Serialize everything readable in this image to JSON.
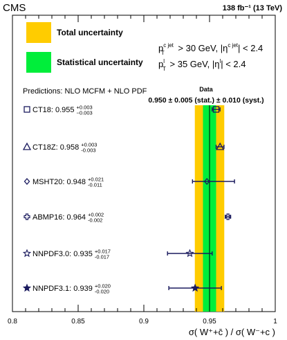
{
  "header": {
    "experiment": "CMS",
    "lumi": "138 fb⁻¹ (13 TeV)"
  },
  "legend": {
    "total": "Total uncertainty",
    "stat": "Statistical uncertainty"
  },
  "cuts": {
    "jet": "p_T^{c jet} > 30 GeV, |η^{c jet}| < 2.4",
    "lepton": "p_T^l > 35 GeV, |η^l| < 2.4"
  },
  "predictions_title": "Predictions: NLO MCFM + NLO PDF",
  "data_label": "Data",
  "data_value_text": "0.950 ± 0.005 (stat.) ± 0.010 (syst.)",
  "colors": {
    "total": "#ffcc00",
    "stat": "#00ee3a",
    "marker": "#1a1a5e",
    "line": "#000000"
  },
  "chart_data": {
    "type": "scatter",
    "xlabel": "σ( W⁺+c̄ ) / σ( W⁻+c )",
    "xlim": [
      0.8,
      1.0
    ],
    "xticks": [
      0.8,
      0.85,
      0.9,
      0.95,
      1.0
    ],
    "xtick_labels": [
      "0.8",
      "0.85",
      "0.9",
      "0.95",
      "1"
    ],
    "measurement": {
      "value": 0.95,
      "stat": 0.005,
      "syst": 0.01,
      "total": 0.0112
    },
    "predictions": [
      {
        "name": "CT18",
        "marker": "open-square",
        "value": 0.955,
        "err_up": 0.003,
        "err_down": 0.003,
        "value_text": "0.955",
        "up_text": "+0.003",
        "down_text": "−0.003"
      },
      {
        "name": "CT18Z",
        "marker": "open-triangle",
        "value": 0.958,
        "err_up": 0.003,
        "err_down": 0.003,
        "value_text": "0.958",
        "up_text": "+0.003",
        "down_text": "-0.003"
      },
      {
        "name": "MSHT20",
        "marker": "open-diamond",
        "value": 0.948,
        "err_up": 0.021,
        "err_down": 0.011,
        "value_text": "0.948",
        "up_text": "+0.021",
        "down_text": "-0.011"
      },
      {
        "name": "ABMP16",
        "marker": "open-cross",
        "value": 0.964,
        "err_up": 0.002,
        "err_down": 0.002,
        "value_text": "0.964",
        "up_text": "+0.002",
        "down_text": "-0.002"
      },
      {
        "name": "NNPDF3.0",
        "marker": "open-star",
        "value": 0.935,
        "err_up": 0.017,
        "err_down": 0.017,
        "value_text": "0.935",
        "up_text": "+0.017",
        "down_text": "-0.017"
      },
      {
        "name": "NNPDF3.1",
        "marker": "filled-star",
        "value": 0.939,
        "err_up": 0.02,
        "err_down": 0.02,
        "value_text": "0.939",
        "up_text": "+0.020",
        "down_text": "-0.020"
      }
    ]
  }
}
